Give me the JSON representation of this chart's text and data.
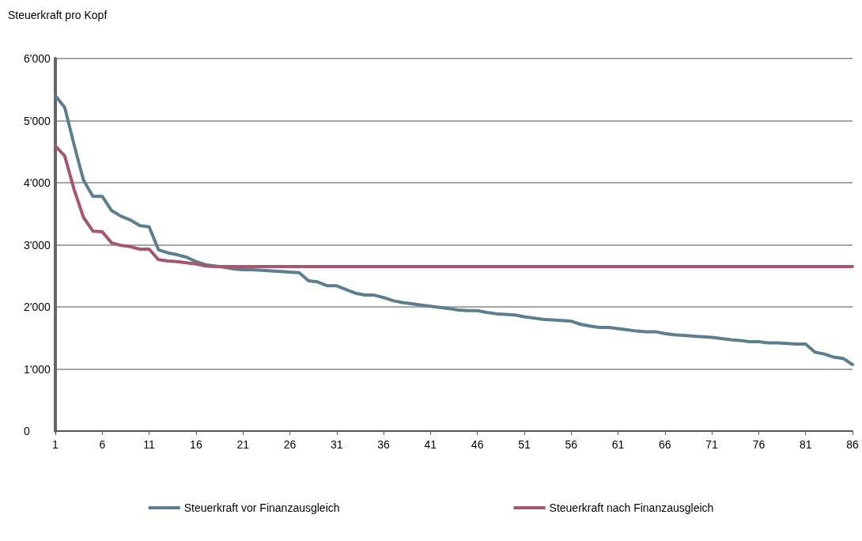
{
  "chart_data": {
    "type": "line",
    "ylabel": "Steuerkraft pro Kopf",
    "x": [
      1,
      2,
      3,
      4,
      5,
      6,
      7,
      8,
      9,
      10,
      11,
      12,
      13,
      14,
      15,
      16,
      17,
      18,
      19,
      20,
      21,
      22,
      23,
      24,
      25,
      26,
      27,
      28,
      29,
      30,
      31,
      32,
      33,
      34,
      35,
      36,
      37,
      38,
      39,
      40,
      41,
      42,
      43,
      44,
      45,
      46,
      47,
      48,
      49,
      50,
      51,
      52,
      53,
      54,
      55,
      56,
      57,
      58,
      59,
      60,
      61,
      62,
      63,
      64,
      65,
      66,
      67,
      68,
      69,
      70,
      71,
      72,
      73,
      74,
      75,
      76,
      77,
      78,
      79,
      80,
      81,
      82,
      83,
      84,
      85,
      86
    ],
    "series": [
      {
        "name": "Steuerkraft vor Finanzausgleich",
        "color": "#5b7f8f",
        "values": [
          5400,
          5210,
          4610,
          4040,
          3780,
          3780,
          3550,
          3460,
          3400,
          3310,
          3290,
          2920,
          2870,
          2840,
          2800,
          2730,
          2680,
          2660,
          2640,
          2610,
          2600,
          2600,
          2590,
          2580,
          2570,
          2560,
          2550,
          2420,
          2400,
          2340,
          2340,
          2280,
          2220,
          2190,
          2190,
          2150,
          2100,
          2070,
          2050,
          2030,
          2010,
          1990,
          1970,
          1950,
          1940,
          1940,
          1910,
          1890,
          1880,
          1870,
          1840,
          1820,
          1800,
          1790,
          1780,
          1770,
          1720,
          1690,
          1670,
          1670,
          1650,
          1630,
          1610,
          1600,
          1600,
          1570,
          1550,
          1540,
          1530,
          1520,
          1510,
          1490,
          1470,
          1460,
          1440,
          1440,
          1420,
          1420,
          1410,
          1400,
          1400,
          1270,
          1240,
          1190,
          1170,
          1070
        ]
      },
      {
        "name": "Steuerkraft nach Finanzausgleich",
        "color": "#a8566f",
        "values": [
          4590,
          4430,
          3890,
          3440,
          3220,
          3210,
          3030,
          2990,
          2970,
          2930,
          2930,
          2760,
          2740,
          2730,
          2710,
          2690,
          2660,
          2650,
          2650,
          2650,
          2650,
          2650,
          2650,
          2650,
          2650,
          2650,
          2650,
          2650,
          2650,
          2650,
          2650,
          2650,
          2650,
          2650,
          2650,
          2650,
          2650,
          2650,
          2650,
          2650,
          2650,
          2650,
          2650,
          2650,
          2650,
          2650,
          2650,
          2650,
          2650,
          2650,
          2650,
          2650,
          2650,
          2650,
          2650,
          2650,
          2650,
          2650,
          2650,
          2650,
          2650,
          2650,
          2650,
          2650,
          2650,
          2650,
          2650,
          2650,
          2650,
          2650,
          2650,
          2650,
          2650,
          2650,
          2650,
          2650,
          2650,
          2650,
          2650,
          2650,
          2650,
          2650,
          2650,
          2650,
          2650,
          2650
        ]
      }
    ],
    "xlim": [
      1,
      86
    ],
    "xticks": [
      1,
      6,
      11,
      16,
      21,
      26,
      31,
      36,
      41,
      46,
      51,
      56,
      61,
      66,
      71,
      76,
      81,
      86
    ],
    "ylim": [
      0,
      6000
    ],
    "yticks": [
      0,
      {
        "value": 1000,
        "label": "1'000"
      },
      {
        "value": 2000,
        "label": "2'000"
      },
      {
        "value": 3000,
        "label": "3'000"
      },
      {
        "value": 4000,
        "label": "4'000"
      },
      {
        "value": 5000,
        "label": "5'000"
      },
      {
        "value": 6000,
        "label": "6'000"
      }
    ],
    "grid": "y",
    "legend": "bottom",
    "marker": "none",
    "line_style": "solid"
  }
}
